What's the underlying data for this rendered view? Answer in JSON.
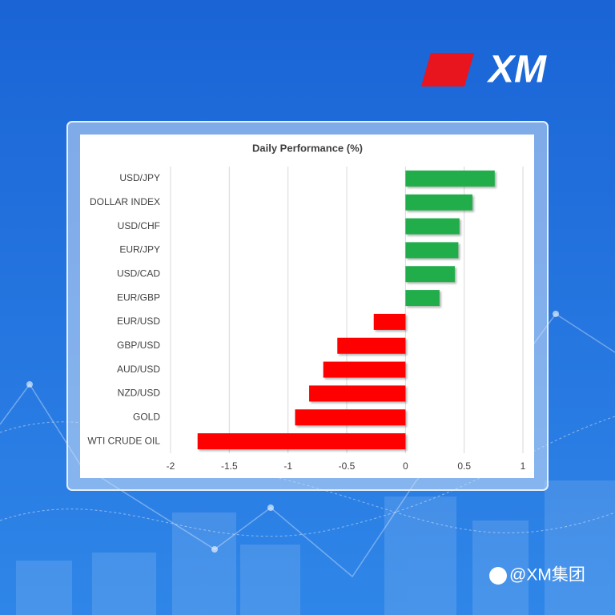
{
  "logo": "XM",
  "watermark": "@XM集团",
  "chart_data": {
    "type": "bar",
    "orientation": "horizontal",
    "title": "Daily Performance (%)",
    "categories": [
      "USD/JPY",
      "DOLLAR INDEX",
      "USD/CHF",
      "EUR/JPY",
      "USD/CAD",
      "EUR/GBP",
      "EUR/USD",
      "GBP/USD",
      "AUD/USD",
      "NZD/USD",
      "GOLD",
      "WTI CRUDE OIL"
    ],
    "values": [
      0.76,
      0.57,
      0.46,
      0.45,
      0.42,
      0.29,
      -0.27,
      -0.58,
      -0.7,
      -0.82,
      -0.94,
      -1.77
    ],
    "positive_color": "#21ad4b",
    "negative_color": "#ff0000",
    "xlim": [
      -2,
      1
    ],
    "xticks": [
      -2,
      -1.5,
      -1,
      -0.5,
      0,
      0.5,
      1
    ],
    "grid": true
  }
}
